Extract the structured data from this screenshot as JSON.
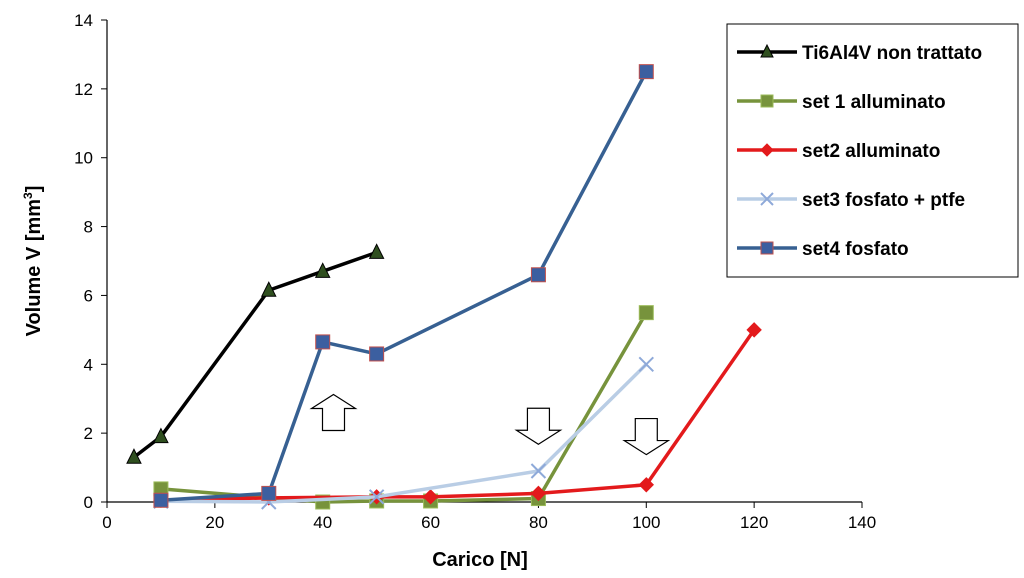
{
  "chart_data": {
    "type": "line",
    "title": "",
    "xlabel": "Carico [N]",
    "ylabel": {
      "main": "Volume V [mm",
      "sup": "3",
      "end": "]"
    },
    "xlim": [
      0,
      140
    ],
    "ylim": [
      0,
      14
    ],
    "xticks": [
      0,
      20,
      40,
      60,
      80,
      100,
      120,
      140
    ],
    "yticks": [
      0,
      2,
      4,
      6,
      8,
      10,
      12,
      14
    ],
    "grid": false,
    "legend_position": "top-right",
    "series": [
      {
        "name": "Ti6Al4V non trattato",
        "color": "#000000",
        "marker": "triangle",
        "marker_fill": "#2f4f1f",
        "points": [
          [
            5,
            1.3
          ],
          [
            10,
            1.9
          ],
          [
            30,
            6.15
          ],
          [
            40,
            6.7
          ],
          [
            50,
            7.25
          ]
        ]
      },
      {
        "name": "set 1 alluminato",
        "color": "#77933c",
        "marker": "square",
        "marker_fill": "#77933c",
        "points": [
          [
            10,
            0.38
          ],
          [
            40,
            0.0
          ],
          [
            50,
            0.03
          ],
          [
            60,
            0.03
          ],
          [
            80,
            0.1
          ],
          [
            100,
            5.5
          ]
        ]
      },
      {
        "name": "set2 alluminato",
        "color": "#e31a1c",
        "marker": "diamond",
        "marker_fill": "#e31a1c",
        "points": [
          [
            10,
            0.05
          ],
          [
            30,
            0.12
          ],
          [
            50,
            0.15
          ],
          [
            60,
            0.15
          ],
          [
            80,
            0.25
          ],
          [
            100,
            0.5
          ],
          [
            120,
            5.0
          ]
        ]
      },
      {
        "name": "set3 fosfato + ptfe",
        "color": "#b9cde5",
        "marker": "x",
        "marker_fill": "#8ea9d9",
        "points": [
          [
            10,
            0.02
          ],
          [
            30,
            0.0
          ],
          [
            50,
            0.15
          ],
          [
            80,
            0.9
          ],
          [
            100,
            4.0
          ]
        ]
      },
      {
        "name": "set4 fosfato",
        "color": "#376092",
        "marker": "square",
        "marker_fill": "#3c5fa0",
        "points": [
          [
            10,
            0.05
          ],
          [
            30,
            0.25
          ],
          [
            40,
            4.65
          ],
          [
            50,
            4.3
          ],
          [
            80,
            6.6
          ],
          [
            100,
            12.5
          ]
        ]
      }
    ],
    "annotations": [
      {
        "type": "arrow-up",
        "x": 42,
        "y": 2.6
      },
      {
        "type": "arrow-down",
        "x": 80,
        "y": 2.2
      },
      {
        "type": "arrow-down",
        "x": 100,
        "y": 1.9
      }
    ]
  }
}
